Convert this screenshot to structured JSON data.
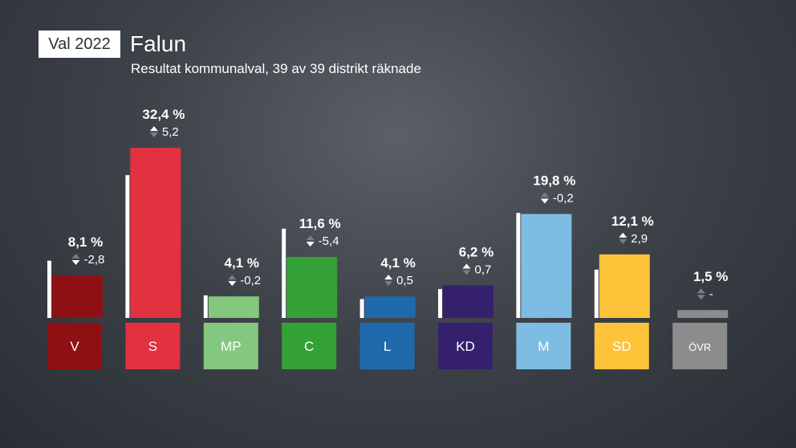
{
  "header": {
    "badge": "Val 2022",
    "title": "Falun",
    "subtitle": "Resultat kommunalval, 39 av 39 distrikt räknade"
  },
  "chart_data": {
    "type": "bar",
    "categories": [
      "V",
      "S",
      "MP",
      "C",
      "L",
      "KD",
      "M",
      "SD",
      "ÖVR"
    ],
    "values": [
      8.1,
      32.4,
      4.1,
      11.6,
      4.1,
      6.2,
      19.8,
      12.1,
      1.5
    ],
    "previous_values": [
      10.9,
      27.2,
      4.3,
      17.0,
      3.6,
      5.5,
      20.0,
      9.2,
      null
    ],
    "value_labels": [
      "8,1 %",
      "32,4 %",
      "4,1 %",
      "11,6 %",
      "4,1 %",
      "6,2 %",
      "19,8 %",
      "12,1 %",
      "1,5 %"
    ],
    "change_labels": [
      "-2,8",
      "5,2",
      "-0,2",
      "-5,4",
      "0,5",
      "0,7",
      "-0,2",
      "2,9",
      "-"
    ],
    "colors": [
      "#8f1014",
      "#e2313f",
      "#84c77e",
      "#34a236",
      "#1f6aad",
      "#35206e",
      "#7dbde3",
      "#fdc43a",
      "#8c8c8c"
    ],
    "label_text_colors": [
      "#ffffff",
      "#ffffff",
      "#ffffff",
      "#ffffff",
      "#ffffff",
      "#ffffff",
      "#ffffff",
      "#ffffff",
      "#ffffff"
    ],
    "ylim": [
      0,
      34
    ],
    "grid": false
  }
}
